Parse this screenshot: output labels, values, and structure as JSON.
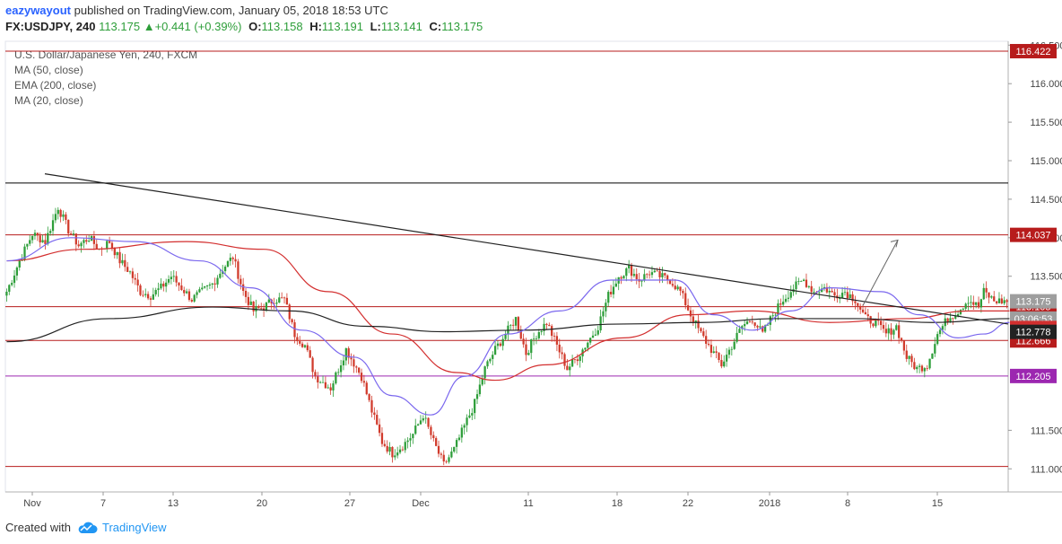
{
  "header": {
    "user": "eazywayout",
    "published_text": "published on TradingView.com, January 05, 2018 18:53 UTC",
    "symbol": "FX:USDJPY, 240",
    "last": "113.175",
    "change_icon": "triangle-up-icon",
    "change": "+0.441 (+0.39%)",
    "o_label": "O:",
    "o": "113.158",
    "h_label": "H:",
    "h": "113.191",
    "l_label": "L:",
    "l": "113.141",
    "c_label": "C:",
    "c": "113.175"
  },
  "legend": {
    "instrument": "U.S. Dollar/Japanese Yen, 240, FXCM",
    "indicators": [
      "MA (50, close)",
      "EMA (200, close)",
      "MA (20, close)"
    ]
  },
  "footer": {
    "created_with": "Created with",
    "brand": "TradingView",
    "brand_icon": "tradingview-cloud-icon"
  },
  "colors": {
    "bull": "#2e9e3a",
    "bear": "#d13b2c",
    "ma50": "#d32f2f",
    "ema200": "#222222",
    "ma20": "#7b68ee",
    "level_red": "#b71c1c",
    "level_purple": "#9c27b0",
    "level_black": "#000000",
    "gray_price": "#9e9e9e"
  },
  "chart_data": {
    "type": "candlestick",
    "ylim": [
      110.7,
      116.55
    ],
    "y_ticks": [
      "111.000",
      "111.500",
      "113.500",
      "114.000",
      "114.500",
      "115.000",
      "115.500",
      "116.000",
      "116.500"
    ],
    "x_ticks": [
      "Nov",
      "7",
      "13",
      "20",
      "27",
      "Dec",
      "11",
      "18",
      "22",
      "2018",
      "8",
      "15"
    ],
    "horizontal_levels": [
      {
        "value": 116.422,
        "color": "level_red",
        "label": "116.422"
      },
      {
        "value": 114.71,
        "color": "level_black"
      },
      {
        "value": 114.037,
        "color": "level_red",
        "label": "114.037"
      },
      {
        "value": 113.105,
        "color": "level_red",
        "label": "113.105"
      },
      {
        "value": 112.666,
        "color": "level_red",
        "label": "112.666"
      },
      {
        "value": 112.205,
        "color": "level_purple",
        "label": "112.205"
      },
      {
        "value": 111.03,
        "color": "level_red"
      }
    ],
    "price_labels": [
      {
        "value": 113.175,
        "text": "113.175",
        "bg": "gray_price"
      },
      {
        "value": 112.95,
        "text": "03:06:53",
        "bg": "gray_price"
      },
      {
        "value": 112.828,
        "text": "112.828",
        "bg": "ma50"
      },
      {
        "value": 112.778,
        "text": "112.778",
        "bg": "ema200"
      }
    ],
    "trendline": {
      "from": {
        "x": "Oct 31",
        "y": 114.83
      },
      "to": {
        "x": "Jan 13",
        "y": 112.88
      }
    },
    "projection_arrow": {
      "from": {
        "x": "Jan 5",
        "y": 113.12
      },
      "to": {
        "x": "Jan 7",
        "y": 113.97
      }
    },
    "series": [
      {
        "name": "MA (50, close)",
        "color": "ma50",
        "points": [
          [
            0,
            113.7
          ],
          [
            30,
            113.85
          ],
          [
            70,
            113.95
          ],
          [
            100,
            113.85
          ],
          [
            125,
            113.3
          ],
          [
            150,
            112.75
          ],
          [
            175,
            112.25
          ],
          [
            190,
            112.15
          ],
          [
            210,
            112.35
          ],
          [
            240,
            112.7
          ],
          [
            265,
            113.0
          ],
          [
            290,
            113.05
          ],
          [
            320,
            112.9
          ],
          [
            350,
            112.95
          ],
          [
            375,
            113.05
          ],
          [
            390,
            113.05
          ]
        ]
      },
      {
        "name": "EMA (200, close)",
        "color": "ema200",
        "points": [
          [
            0,
            112.65
          ],
          [
            40,
            112.95
          ],
          [
            80,
            113.1
          ],
          [
            110,
            113.05
          ],
          [
            140,
            112.85
          ],
          [
            170,
            112.78
          ],
          [
            200,
            112.8
          ],
          [
            240,
            112.88
          ],
          [
            270,
            112.9
          ],
          [
            300,
            112.95
          ],
          [
            330,
            112.95
          ],
          [
            360,
            112.9
          ],
          [
            390,
            112.95
          ]
        ]
      },
      {
        "name": "MA (20, close)",
        "color": "ma20",
        "points": [
          [
            0,
            113.7
          ],
          [
            25,
            114.0
          ],
          [
            50,
            113.95
          ],
          [
            75,
            113.7
          ],
          [
            95,
            113.35
          ],
          [
            115,
            112.8
          ],
          [
            135,
            112.45
          ],
          [
            150,
            111.95
          ],
          [
            165,
            111.7
          ],
          [
            178,
            112.2
          ],
          [
            195,
            112.75
          ],
          [
            215,
            113.05
          ],
          [
            235,
            113.45
          ],
          [
            260,
            113.45
          ],
          [
            275,
            113.0
          ],
          [
            290,
            112.8
          ],
          [
            305,
            113.05
          ],
          [
            320,
            113.35
          ],
          [
            340,
            113.3
          ],
          [
            355,
            113.0
          ],
          [
            370,
            112.7
          ],
          [
            380,
            112.75
          ],
          [
            390,
            112.9
          ]
        ]
      }
    ],
    "candles": {
      "count": 390,
      "close_path": [
        [
          0,
          113.3
        ],
        [
          5,
          113.7
        ],
        [
          10,
          114.05
        ],
        [
          15,
          113.95
        ],
        [
          20,
          114.4
        ],
        [
          24,
          114.1
        ],
        [
          28,
          113.9
        ],
        [
          32,
          114.0
        ],
        [
          36,
          113.85
        ],
        [
          40,
          113.95
        ],
        [
          44,
          113.7
        ],
        [
          48,
          113.55
        ],
        [
          52,
          113.3
        ],
        [
          56,
          113.25
        ],
        [
          60,
          113.35
        ],
        [
          64,
          113.5
        ],
        [
          68,
          113.35
        ],
        [
          72,
          113.2
        ],
        [
          76,
          113.3
        ],
        [
          80,
          113.4
        ],
        [
          84,
          113.6
        ],
        [
          88,
          113.75
        ],
        [
          92,
          113.3
        ],
        [
          96,
          113.05
        ],
        [
          100,
          113.1
        ],
        [
          104,
          113.2
        ],
        [
          108,
          113.2
        ],
        [
          112,
          112.75
        ],
        [
          116,
          112.6
        ],
        [
          120,
          112.2
        ],
        [
          126,
          112.05
        ],
        [
          132,
          112.55
        ],
        [
          138,
          112.2
        ],
        [
          142,
          111.75
        ],
        [
          146,
          111.35
        ],
        [
          150,
          111.2
        ],
        [
          154,
          111.3
        ],
        [
          158,
          111.45
        ],
        [
          162,
          111.7
        ],
        [
          166,
          111.35
        ],
        [
          170,
          111.05
        ],
        [
          174,
          111.25
        ],
        [
          178,
          111.55
        ],
        [
          182,
          111.85
        ],
        [
          186,
          112.3
        ],
        [
          190,
          112.55
        ],
        [
          194,
          112.75
        ],
        [
          198,
          112.95
        ],
        [
          202,
          112.5
        ],
        [
          206,
          112.75
        ],
        [
          210,
          112.9
        ],
        [
          214,
          112.6
        ],
        [
          218,
          112.3
        ],
        [
          222,
          112.45
        ],
        [
          226,
          112.65
        ],
        [
          230,
          112.85
        ],
        [
          234,
          113.25
        ],
        [
          238,
          113.5
        ],
        [
          242,
          113.6
        ],
        [
          246,
          113.45
        ],
        [
          250,
          113.55
        ],
        [
          254,
          113.5
        ],
        [
          258,
          113.45
        ],
        [
          262,
          113.3
        ],
        [
          266,
          113.0
        ],
        [
          270,
          112.75
        ],
        [
          274,
          112.55
        ],
        [
          278,
          112.35
        ],
        [
          282,
          112.6
        ],
        [
          286,
          112.85
        ],
        [
          290,
          112.95
        ],
        [
          294,
          112.75
        ],
        [
          298,
          113.0
        ],
        [
          302,
          113.2
        ],
        [
          306,
          113.35
        ],
        [
          310,
          113.45
        ],
        [
          314,
          113.3
        ],
        [
          318,
          113.35
        ],
        [
          322,
          113.25
        ],
        [
          326,
          113.3
        ],
        [
          330,
          113.2
        ],
        [
          334,
          112.95
        ],
        [
          338,
          112.9
        ],
        [
          342,
          112.75
        ],
        [
          346,
          112.85
        ],
        [
          350,
          112.45
        ],
        [
          354,
          112.3
        ],
        [
          358,
          112.35
        ],
        [
          362,
          112.75
        ],
        [
          366,
          112.95
        ],
        [
          370,
          113.05
        ],
        [
          374,
          113.2
        ],
        [
          378,
          113.1
        ],
        [
          380,
          113.3
        ],
        [
          384,
          113.18
        ],
        [
          389,
          113.175
        ]
      ]
    }
  }
}
